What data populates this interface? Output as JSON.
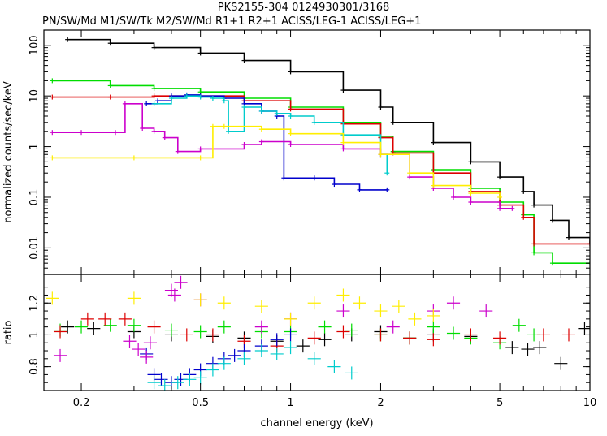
{
  "chart_data": {
    "title": "PKS2155-304 0124930301/3168",
    "subtitle": "PN/SW/Md M1/SW/Tk M2/SW/Md R1+1 R2+1 ACISS/LEG-1 ACISS/LEG+1",
    "xlabel": "channel energy (keV)",
    "xscale": "log",
    "xlim": [
      0.15,
      10
    ],
    "xticks": [
      {
        "value": 0.2,
        "label": "0.2"
      },
      {
        "value": 0.5,
        "label": "0.5"
      },
      {
        "value": 1,
        "label": "1"
      },
      {
        "value": 2,
        "label": "2"
      },
      {
        "value": 5,
        "label": "5"
      },
      {
        "value": 10,
        "label": "10"
      }
    ],
    "panels": [
      {
        "name": "spectrum",
        "type": "line",
        "ylabel": "normalized counts/sec/keV",
        "yscale": "log",
        "ylim": [
          0.003,
          200
        ],
        "yticks": [
          {
            "value": 0.01,
            "label": "0.01"
          },
          {
            "value": 0.1,
            "label": "0.1"
          },
          {
            "value": 1,
            "label": "1"
          },
          {
            "value": 10,
            "label": "10"
          },
          {
            "value": 100,
            "label": "100"
          }
        ],
        "series": [
          {
            "name": "PN/SW/Md",
            "color": "#000000",
            "x": [
              0.18,
              0.25,
              0.35,
              0.5,
              0.7,
              1.0,
              1.5,
              2.0,
              2.2,
              3.0,
              4.0,
              5.0,
              6.0,
              6.5,
              7.5,
              8.5,
              10.0
            ],
            "y": [
              130,
              110,
              90,
              70,
              50,
              30,
              13,
              6,
              3,
              1.2,
              0.5,
              0.25,
              0.13,
              0.07,
              0.035,
              0.016,
              0.012
            ]
          },
          {
            "name": "M1/SW/Tk",
            "color": "#00dd00",
            "x": [
              0.16,
              0.25,
              0.35,
              0.5,
              0.7,
              1.0,
              1.5,
              2.0,
              2.2,
              3.0,
              4.0,
              5.0,
              6.0,
              6.5,
              7.5,
              10.0
            ],
            "y": [
              20,
              16,
              14,
              12,
              9,
              6,
              3,
              1.6,
              0.8,
              0.35,
              0.15,
              0.08,
              0.045,
              0.008,
              0.005,
              0.005
            ]
          },
          {
            "name": "M2/SW/Md",
            "color": "#dd0000",
            "x": [
              0.16,
              0.25,
              0.35,
              0.5,
              0.7,
              1.0,
              1.5,
              2.0,
              2.2,
              3.0,
              4.0,
              5.0,
              6.0,
              6.5,
              10.0
            ],
            "y": [
              9.5,
              9.5,
              10,
              10,
              8,
              5.5,
              2.8,
              1.5,
              0.75,
              0.3,
              0.13,
              0.07,
              0.04,
              0.012,
              0.012
            ]
          },
          {
            "name": "R1+1",
            "color": "#0000cc",
            "x": [
              0.33,
              0.36,
              0.4,
              0.45,
              0.5,
              0.6,
              0.7,
              0.8,
              0.9,
              0.95,
              1.2,
              1.2,
              1.4,
              1.7,
              2.1
            ],
            "y": [
              7,
              8,
              10,
              10.5,
              10,
              9,
              7,
              5,
              4,
              0.24,
              0.24,
              0.24,
              0.18,
              0.14,
              0.14
            ]
          },
          {
            "name": "R2+1",
            "color": "#00cccc",
            "x": [
              0.35,
              0.4,
              0.45,
              0.5,
              0.55,
              0.6,
              0.62,
              0.7,
              0.8,
              0.9,
              1.0,
              1.2,
              1.5,
              2.0,
              2.1
            ],
            "y": [
              7,
              9,
              10,
              9.5,
              9,
              8,
              2,
              6,
              5,
              4.5,
              4,
              3,
              1.7,
              0.7,
              0.3
            ]
          },
          {
            "name": "ACISS/LEG-1",
            "color": "#cc00cc",
            "x": [
              0.16,
              0.2,
              0.26,
              0.28,
              0.32,
              0.35,
              0.38,
              0.42,
              0.5,
              0.7,
              0.8,
              1.0,
              1.5,
              2.0,
              2.5,
              3.0,
              3.5,
              4.0,
              5.0,
              5.5
            ],
            "y": [
              1.9,
              1.9,
              1.9,
              7,
              2.3,
              2,
              1.5,
              0.8,
              0.9,
              1.1,
              1.25,
              1.1,
              0.9,
              0.7,
              0.25,
              0.15,
              0.1,
              0.08,
              0.06,
              0.06
            ]
          },
          {
            "name": "ACISS/LEG+1",
            "color": "#ffee00",
            "x": [
              0.16,
              0.3,
              0.5,
              0.55,
              0.6,
              0.8,
              1.0,
              1.5,
              2.0,
              2.5,
              3.0,
              4.0,
              5.0
            ],
            "y": [
              0.6,
              0.6,
              0.6,
              2.5,
              2.5,
              2.2,
              1.8,
              1.2,
              0.7,
              0.3,
              0.17,
              0.12,
              0.1
            ]
          }
        ]
      },
      {
        "name": "ratio",
        "type": "scatter",
        "ylabel": "ratio",
        "yscale": "linear",
        "ylim": [
          0.65,
          1.38
        ],
        "yticks": [
          {
            "value": 0.8,
            "label": "0.8"
          },
          {
            "value": 1,
            "label": "1"
          },
          {
            "value": 1.2,
            "label": "1.2"
          }
        ],
        "reference_line": 1,
        "series": [
          {
            "name": "PN/SW/Md",
            "color": "#000000",
            "x": [
              0.18,
              0.22,
              0.3,
              0.4,
              0.55,
              0.7,
              0.9,
              1.1,
              1.3,
              1.6,
              2.0,
              2.5,
              3.0,
              4.0,
              5.5,
              6.2,
              6.8,
              8.0,
              9.6
            ],
            "y": [
              1.05,
              1.04,
              1.02,
              1.0,
              0.99,
              0.98,
              0.96,
              0.93,
              0.97,
              1.0,
              1.02,
              0.98,
              1.0,
              0.99,
              0.92,
              0.91,
              0.92,
              0.82,
              1.04
            ]
          },
          {
            "name": "M1/SW/Tk",
            "color": "#00dd00",
            "x": [
              0.17,
              0.2,
              0.25,
              0.3,
              0.4,
              0.5,
              0.6,
              0.8,
              1.0,
              1.3,
              1.6,
              2.0,
              2.5,
              3.0,
              3.5,
              4.0,
              5.0,
              5.8,
              6.5
            ],
            "y": [
              1.03,
              1.05,
              1.06,
              1.06,
              1.03,
              1.02,
              1.05,
              1.02,
              1.02,
              1.05,
              1.03,
              1.0,
              0.98,
              1.05,
              1.01,
              0.98,
              0.95,
              1.06,
              1.0
            ]
          },
          {
            "name": "M2/SW/Md",
            "color": "#dd0000",
            "x": [
              0.17,
              0.21,
              0.24,
              0.28,
              0.35,
              0.45,
              0.55,
              0.7,
              0.9,
              1.2,
              1.5,
              2.0,
              2.5,
              3.0,
              4.0,
              5.0,
              7.0,
              8.5
            ],
            "y": [
              1.02,
              1.1,
              1.1,
              1.1,
              1.05,
              1.0,
              1.0,
              0.96,
              0.93,
              0.98,
              1.02,
              1.0,
              0.98,
              0.97,
              1.0,
              0.98,
              1.0,
              1.0
            ]
          },
          {
            "name": "R1+1",
            "color": "#0000cc",
            "x": [
              0.33,
              0.35,
              0.37,
              0.4,
              0.43,
              0.46,
              0.5,
              0.55,
              0.6,
              0.65,
              0.7,
              0.8,
              0.9,
              1.0
            ],
            "y": [
              0.88,
              0.75,
              0.72,
              0.7,
              0.72,
              0.75,
              0.78,
              0.82,
              0.85,
              0.87,
              0.9,
              0.93,
              0.97,
              1.0
            ]
          },
          {
            "name": "R2+1",
            "color": "#00cccc",
            "x": [
              0.35,
              0.38,
              0.42,
              0.46,
              0.5,
              0.55,
              0.6,
              0.7,
              0.8,
              0.9,
              1.0,
              1.2,
              1.4,
              1.6
            ],
            "y": [
              0.7,
              0.68,
              0.7,
              0.72,
              0.73,
              0.78,
              0.82,
              0.85,
              0.9,
              0.88,
              0.92,
              0.85,
              0.8,
              0.76
            ]
          },
          {
            "name": "ACISS/LEG-1",
            "color": "#cc00cc",
            "x": [
              0.17,
              0.29,
              0.31,
              0.33,
              0.34,
              0.4,
              0.41,
              0.43,
              0.5,
              0.8,
              1.0,
              1.5,
              2.2,
              3.0,
              3.5,
              4.5
            ],
            "y": [
              0.87,
              0.96,
              0.91,
              0.86,
              0.95,
              1.28,
              1.25,
              1.33,
              1.22,
              1.05,
              1.1,
              1.15,
              1.05,
              1.15,
              1.2,
              1.15
            ]
          },
          {
            "name": "ACISS/LEG+1",
            "color": "#ffee00",
            "x": [
              0.16,
              0.3,
              0.5,
              0.6,
              0.8,
              1.0,
              1.2,
              1.5,
              1.7,
              2.0,
              2.3,
              2.6,
              3.0
            ],
            "y": [
              1.23,
              1.23,
              1.22,
              1.2,
              1.18,
              1.1,
              1.2,
              1.25,
              1.2,
              1.15,
              1.18,
              1.1,
              1.12
            ]
          }
        ]
      }
    ]
  }
}
